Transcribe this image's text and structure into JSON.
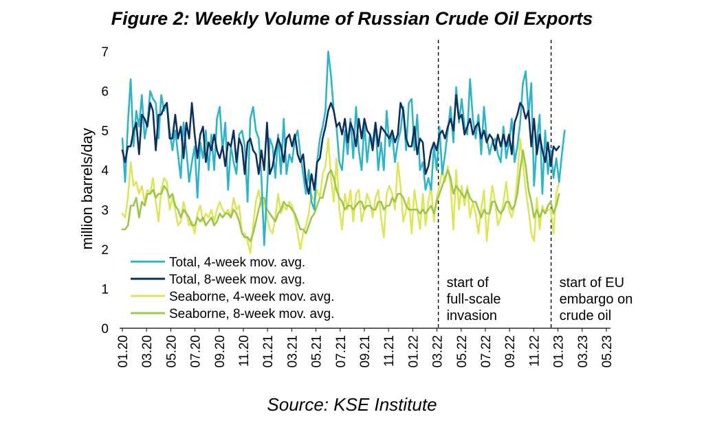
{
  "title": "Figure 2: Weekly Volume of Russian Crude Oil Exports",
  "source": "Source: KSE Institute",
  "colors": {
    "total4": "#2fb3c6",
    "total8": "#0e2f5c",
    "sea4": "#dde55a",
    "sea8": "#9cc54a"
  },
  "chart_data": {
    "type": "line",
    "ylabel": "million barrels/day",
    "ylim": [
      0,
      7
    ],
    "yticks": [
      "0",
      "1",
      "2",
      "3",
      "4",
      "5",
      "6",
      "7"
    ],
    "x_tick_labels": [
      "01.20",
      "03.20",
      "05.20",
      "07.20",
      "09.20",
      "11.20",
      "01.21",
      "03.21",
      "05.21",
      "07.21",
      "09.21",
      "11.21",
      "01.22",
      "03.22",
      "05.22",
      "07.22",
      "09.22",
      "11.22",
      "01.23",
      "03.23",
      "05.23"
    ],
    "x_unit": "weeks since first week of Jan 2020",
    "legend_position": "lower-left",
    "series": [
      {
        "name": "Total, 4-week mov. avg.",
        "key": "total4",
        "values": [
          4.8,
          3.7,
          5.2,
          6.3,
          4.6,
          5.5,
          5.1,
          5.9,
          4.8,
          5.2,
          6.0,
          5.8,
          5.7,
          4.8,
          5.9,
          5.5,
          5.7,
          5.0,
          4.5,
          5.0,
          4.4,
          3.8,
          5.2,
          4.5,
          3.7,
          4.2,
          4.6,
          3.3,
          4.7,
          4.3,
          5.0,
          4.0,
          4.9,
          4.0,
          5.3,
          5.6,
          4.5,
          5.2,
          3.5,
          4.6,
          4.2,
          3.9,
          4.9,
          5.0,
          4.6,
          3.2,
          5.3,
          5.6,
          5.0,
          4.8,
          3.8,
          2.1,
          3.5,
          4.8,
          4.6,
          3.8,
          4.9,
          3.9,
          5.3,
          3.9,
          4.4,
          4.2,
          4.8,
          5.0,
          4.4,
          3.9,
          3.4,
          4.0,
          3.2,
          3.0,
          4.2,
          4.8,
          5.1,
          5.5,
          7.0,
          6.4,
          5.5,
          5.1,
          4.2,
          4.0,
          5.0,
          4.4,
          5.3,
          4.3,
          5.6,
          4.5,
          4.0,
          5.2,
          4.2,
          4.9,
          4.7,
          5.2,
          4.0,
          4.7,
          4.0,
          5.5,
          4.6,
          4.9,
          4.2,
          4.7,
          5.0,
          5.6,
          4.5,
          5.7,
          5.8,
          4.5,
          5.4,
          4.0,
          4.2,
          3.5,
          3.8,
          3.5,
          4.6,
          4.0,
          5.1,
          3.9,
          4.4,
          5.0,
          5.6,
          4.7,
          6.1,
          5.2,
          5.8,
          5.1,
          4.9,
          6.3,
          5.3,
          4.8,
          5.4,
          4.4,
          5.6,
          4.8,
          4.4,
          4.7,
          4.8,
          4.4,
          4.2,
          5.1,
          4.3,
          4.7,
          5.3,
          4.2,
          4.6,
          5.2,
          6.2,
          6.5,
          5.4,
          6.2,
          3.6,
          4.7,
          5.4,
          3.4,
          5.0,
          3.9,
          4.5,
          3.8,
          4.3,
          3.7,
          4.4,
          5.0
        ]
      },
      {
        "name": "Total, 8-week mov. avg.",
        "key": "total8",
        "values": [
          4.5,
          4.2,
          4.6,
          4.6,
          5.0,
          5.2,
          4.4,
          5.4,
          5.3,
          5.1,
          5.7,
          5.5,
          4.5,
          5.4,
          5.4,
          5.6,
          5.7,
          4.8,
          4.8,
          5.4,
          4.8,
          5.1,
          4.3,
          5.2,
          4.8,
          5.7,
          4.9,
          4.3,
          4.9,
          5.1,
          4.2,
          4.7,
          4.5,
          4.9,
          4.5,
          4.3,
          4.6,
          4.1,
          4.7,
          4.6,
          5.0,
          4.2,
          4.8,
          4.6,
          3.9,
          4.7,
          4.8,
          4.5,
          4.4,
          3.9,
          4.5,
          4.0,
          5.2,
          3.9,
          4.1,
          4.5,
          4.8,
          4.6,
          4.2,
          4.8,
          4.9,
          4.6,
          4.9,
          4.4,
          4.2,
          4.4,
          3.7,
          3.4,
          3.9,
          3.5,
          4.2,
          4.3,
          4.8,
          5.1,
          5.5,
          5.7,
          5.5,
          5.1,
          5.2,
          4.9,
          5.3,
          4.7,
          5.2,
          5.0,
          4.6,
          5.3,
          4.8,
          5.3,
          5.0,
          4.9,
          4.5,
          5.2,
          4.6,
          5.1,
          5.0,
          4.9,
          4.8,
          5.0,
          4.7,
          4.9,
          5.7,
          5.5,
          4.8,
          4.6,
          4.6,
          5.1,
          4.4,
          4.8,
          4.7,
          3.9,
          4.1,
          4.5,
          4.7,
          4.5,
          4.9,
          5.0,
          4.8,
          5.1,
          5.3,
          5.0,
          5.9,
          5.3,
          5.4,
          4.9,
          5.1,
          5.3,
          4.9,
          5.1,
          5.2,
          4.8,
          5.0,
          4.7,
          4.9,
          4.8,
          4.5,
          4.9,
          4.6,
          4.9,
          4.6,
          4.9,
          4.4,
          5.2,
          5.4,
          5.7,
          5.6,
          5.3,
          5.5,
          4.6,
          5.3,
          4.4,
          4.9,
          4.5,
          4.2,
          4.7,
          4.1,
          4.6,
          4.5,
          4.6
        ]
      },
      {
        "name": "Seaborne, 4-week mov. avg.",
        "key": "sea4",
        "values": [
          2.9,
          2.8,
          3.3,
          4.2,
          3.6,
          3.7,
          3.4,
          3.6,
          3.2,
          3.5,
          3.4,
          3.8,
          3.2,
          2.7,
          3.5,
          3.8,
          3.7,
          3.0,
          3.3,
          3.0,
          2.6,
          2.7,
          3.2,
          2.9,
          2.6,
          2.7,
          2.4,
          2.9,
          3.1,
          2.7,
          2.9,
          2.8,
          3.0,
          2.7,
          3.0,
          3.2,
          3.0,
          2.9,
          3.0,
          2.8,
          3.3,
          3.0,
          3.1,
          2.4,
          2.4,
          2.2,
          1.9,
          2.6,
          3.2,
          3.5,
          3.1,
          3.2,
          2.8,
          2.5,
          2.4,
          2.8,
          3.4,
          2.9,
          3.1,
          3.0,
          3.2,
          3.1,
          2.8,
          2.4,
          2.0,
          2.4,
          2.6,
          2.9,
          3.4,
          3.2,
          3.5,
          3.3,
          3.9,
          4.1,
          4.8,
          3.8,
          3.2,
          4.3,
          3.0,
          2.5,
          3.4,
          3.0,
          3.5,
          2.7,
          3.4,
          3.5,
          2.7,
          3.0,
          3.4,
          3.2,
          2.8,
          3.3,
          3.5,
          2.8,
          2.3,
          3.4,
          3.6,
          3.4,
          3.0,
          4.2,
          3.6,
          2.7,
          3.0,
          3.3,
          2.4,
          3.5,
          3.0,
          2.5,
          3.4,
          2.6,
          3.2,
          3.6,
          2.7,
          3.3,
          3.6,
          4.0,
          3.7,
          4.1,
          3.6,
          2.5,
          4.0,
          3.0,
          3.6,
          3.1,
          3.6,
          2.8,
          3.2,
          2.9,
          2.4,
          3.0,
          3.5,
          2.2,
          3.0,
          3.6,
          3.2,
          2.6,
          2.8,
          3.2,
          3.7,
          3.0,
          2.8,
          3.1,
          3.8,
          4.8,
          4.2,
          3.5,
          3.0,
          2.4,
          2.2,
          3.3,
          2.5,
          3.1,
          2.9,
          3.0,
          3.0,
          2.4,
          3.4,
          3.7
        ]
      },
      {
        "name": "Seaborne, 8-week mov. avg.",
        "key": "sea8",
        "values": [
          2.5,
          2.5,
          2.6,
          3.1,
          3.1,
          3.3,
          2.8,
          3.2,
          3.1,
          3.4,
          3.4,
          3.5,
          3.3,
          3.4,
          3.4,
          3.6,
          3.5,
          3.3,
          3.4,
          3.1,
          3.0,
          2.8,
          3.0,
          2.9,
          2.8,
          2.6,
          2.6,
          2.8,
          2.7,
          2.8,
          2.6,
          2.7,
          2.8,
          2.6,
          2.7,
          2.9,
          2.8,
          2.9,
          2.9,
          2.8,
          3.0,
          2.9,
          2.7,
          2.4,
          2.3,
          2.3,
          2.2,
          2.4,
          2.7,
          3.0,
          3.3,
          3.3,
          3.0,
          2.9,
          2.8,
          2.7,
          2.9,
          3.0,
          3.2,
          3.1,
          3.1,
          3.0,
          2.9,
          2.7,
          2.5,
          2.5,
          2.4,
          2.6,
          2.8,
          2.9,
          3.1,
          3.3,
          3.3,
          3.6,
          3.9,
          4.0,
          3.8,
          3.5,
          3.3,
          3.2,
          3.0,
          3.1,
          3.1,
          3.0,
          3.1,
          3.2,
          3.2,
          3.0,
          3.1,
          3.1,
          3.0,
          3.0,
          3.2,
          3.2,
          3.0,
          3.1,
          3.1,
          3.3,
          3.2,
          3.4,
          3.4,
          3.3,
          3.1,
          3.0,
          3.0,
          3.0,
          3.0,
          2.9,
          3.0,
          2.9,
          3.0,
          3.1,
          2.9,
          3.2,
          3.4,
          3.6,
          3.8,
          4.0,
          3.8,
          3.4,
          3.6,
          3.5,
          3.4,
          3.3,
          3.5,
          3.3,
          3.2,
          3.2,
          3.0,
          2.8,
          3.0,
          2.9,
          2.9,
          3.2,
          3.2,
          3.0,
          2.9,
          3.0,
          3.2,
          3.2,
          3.0,
          3.1,
          3.4,
          4.0,
          4.5,
          4.1,
          3.5,
          3.2,
          2.8,
          3.0,
          2.8,
          3.0,
          2.9,
          3.1,
          3.2,
          2.9,
          3.1,
          3.4
        ]
      }
    ],
    "annotations": [
      {
        "at": "03.22",
        "lines": [
          "start of",
          "full-scale",
          "invasion"
        ]
      },
      {
        "at": "01.23",
        "lines": [
          "start of EU",
          "embargo on",
          "crude oil"
        ]
      }
    ]
  }
}
